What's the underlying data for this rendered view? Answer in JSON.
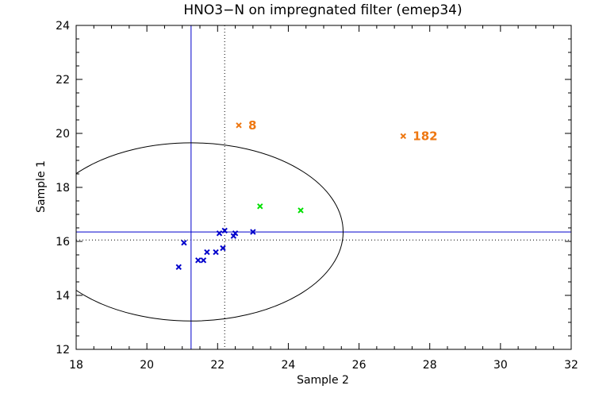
{
  "chart_data": {
    "type": "scatter",
    "title": "HNO3−N on impregnated filter (emep34)",
    "xlabel": "Sample 2",
    "ylabel": "Sample 1",
    "xlim": [
      18,
      32
    ],
    "ylim": [
      12,
      24
    ],
    "xticks": [
      "18",
      "20",
      "22",
      "24",
      "26",
      "28",
      "30",
      "32"
    ],
    "yticks": [
      "12",
      "14",
      "16",
      "18",
      "20",
      "22",
      "24"
    ],
    "grid": false,
    "colors": {
      "blue": "#0000cc",
      "green": "#00e000",
      "orange": "#ee7711",
      "axis": "#000000",
      "reference_line": "#0000cc"
    },
    "reference_lines": {
      "vertical_solid": 21.25,
      "horizontal_solid": 16.35,
      "vertical_dotted": 22.2,
      "horizontal_dotted": 16.05
    },
    "ellipse": {
      "center": [
        21.25,
        16.35
      ],
      "radius_x": 4.3,
      "radius_y": 3.3
    },
    "series": [
      {
        "color": "blue",
        "points": [
          [
            20.9,
            15.05
          ],
          [
            21.05,
            15.95
          ],
          [
            21.45,
            15.3
          ],
          [
            21.6,
            15.3
          ],
          [
            21.7,
            15.6
          ],
          [
            21.95,
            15.6
          ],
          [
            22.05,
            16.3
          ],
          [
            22.15,
            15.75
          ],
          [
            22.2,
            16.4
          ],
          [
            22.45,
            16.2
          ],
          [
            22.5,
            16.3
          ],
          [
            23.0,
            16.35
          ]
        ]
      },
      {
        "color": "green",
        "points": [
          [
            23.2,
            17.3
          ],
          [
            24.35,
            17.15
          ]
        ]
      },
      {
        "color": "orange",
        "points": [
          [
            22.6,
            20.3
          ],
          [
            27.25,
            19.9
          ]
        ],
        "labels": [
          "8",
          "182"
        ]
      }
    ]
  }
}
